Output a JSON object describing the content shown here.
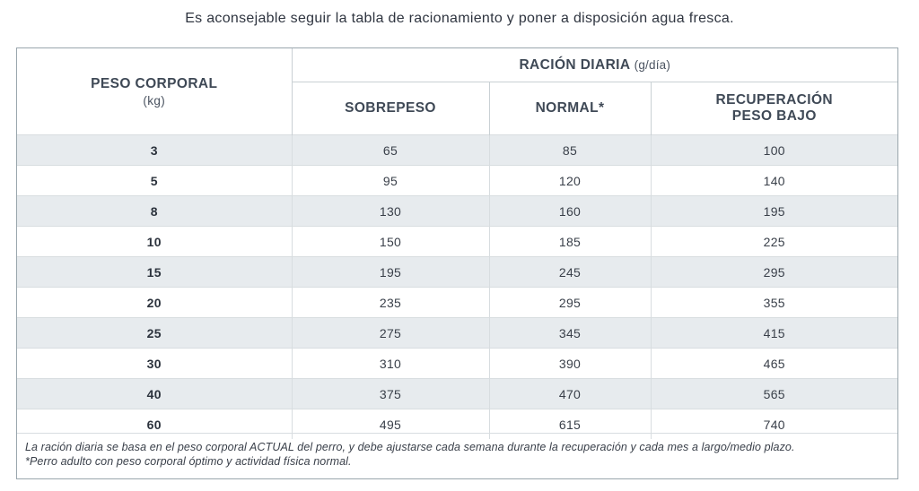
{
  "intro": "Es aconsejable seguir la tabla de racionamiento y poner a disposición agua fresca.",
  "header": {
    "weight_label": "PESO CORPORAL",
    "weight_unit": "(kg)",
    "ration_label": "RACIÓN DIARIA",
    "ration_unit": "(g/día)",
    "columns": [
      "SOBREPESO",
      "NORMAL*",
      "RECUPERACIÓN",
      "PESO BAJO"
    ]
  },
  "rows": [
    {
      "weight": "3",
      "sobrepeso": "65",
      "normal": "85",
      "recuperacion": "100"
    },
    {
      "weight": "5",
      "sobrepeso": "95",
      "normal": "120",
      "recuperacion": "140"
    },
    {
      "weight": "8",
      "sobrepeso": "130",
      "normal": "160",
      "recuperacion": "195"
    },
    {
      "weight": "10",
      "sobrepeso": "150",
      "normal": "185",
      "recuperacion": "225"
    },
    {
      "weight": "15",
      "sobrepeso": "195",
      "normal": "245",
      "recuperacion": "295"
    },
    {
      "weight": "20",
      "sobrepeso": "235",
      "normal": "295",
      "recuperacion": "355"
    },
    {
      "weight": "25",
      "sobrepeso": "275",
      "normal": "345",
      "recuperacion": "415"
    },
    {
      "weight": "30",
      "sobrepeso": "310",
      "normal": "390",
      "recuperacion": "465"
    },
    {
      "weight": "40",
      "sobrepeso": "375",
      "normal": "470",
      "recuperacion": "565"
    },
    {
      "weight": "60",
      "sobrepeso": "495",
      "normal": "615",
      "recuperacion": "740"
    }
  ],
  "footnotes": [
    "La ración diaria se basa en el peso corporal ACTUAL del perro, y debe ajustarse cada semana durante la recuperación y cada mes a largo/medio plazo.",
    "*Perro adulto con peso corporal óptimo y actividad física normal."
  ]
}
